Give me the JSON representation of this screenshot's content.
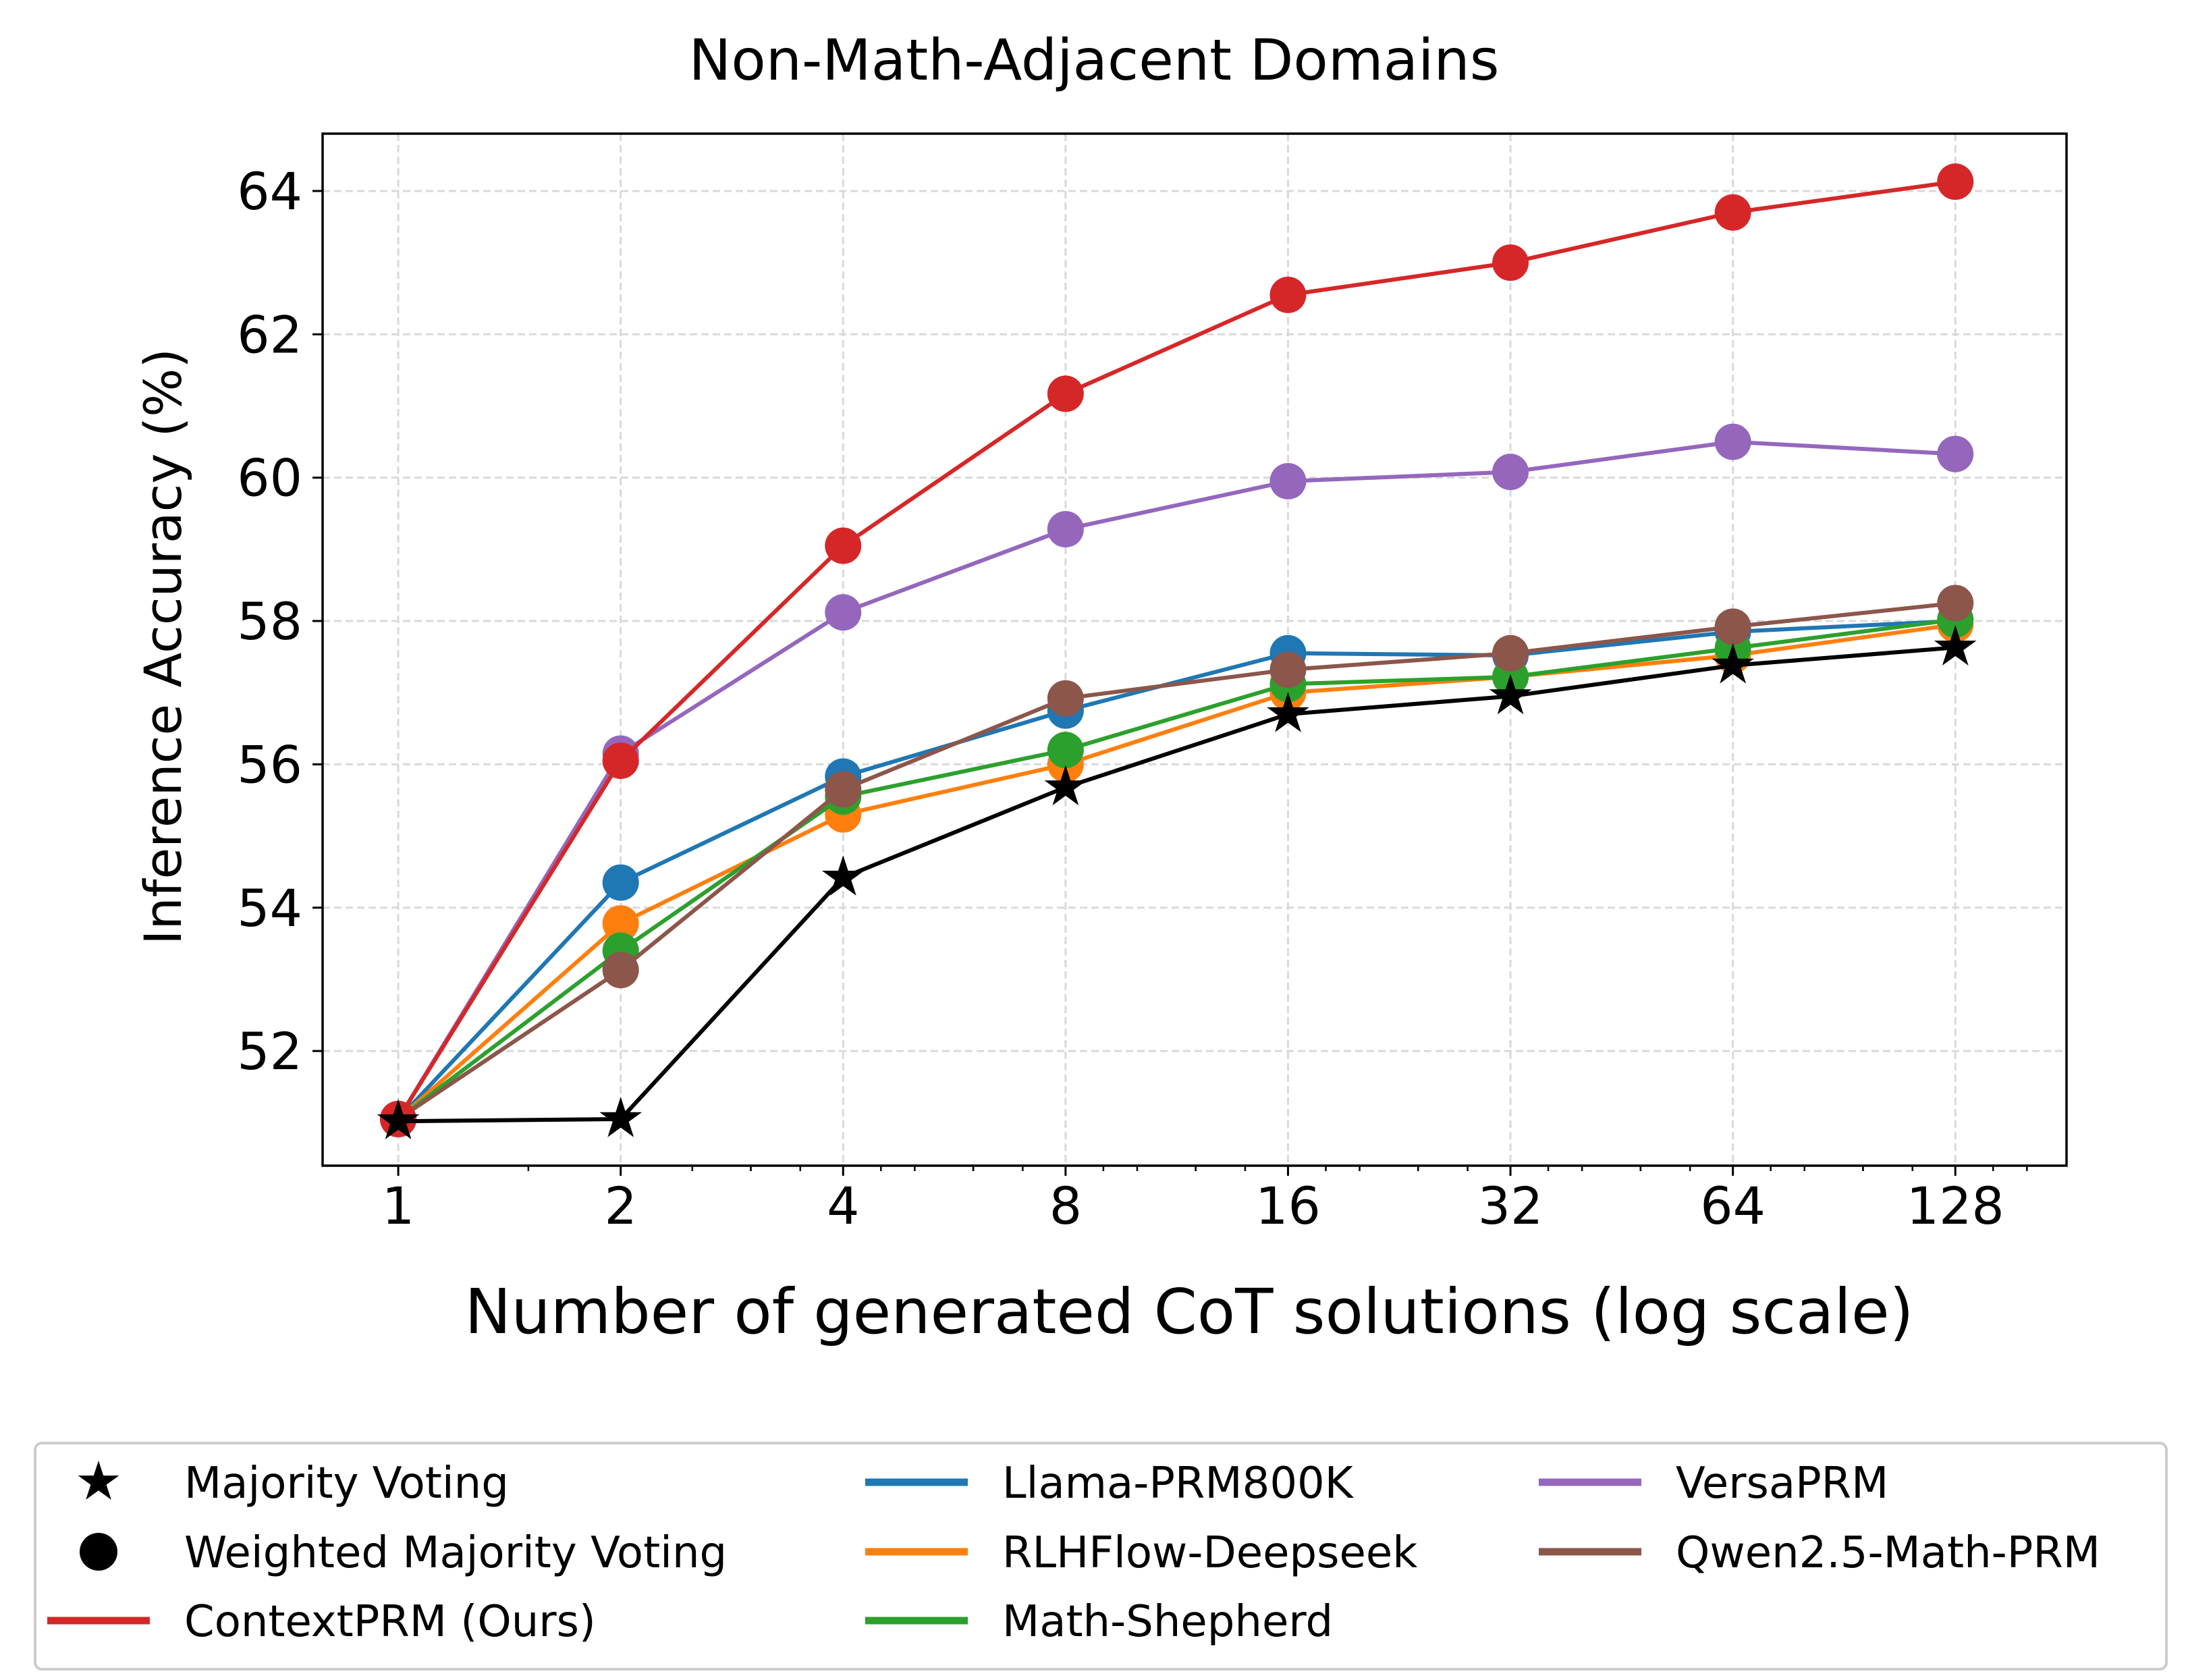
{
  "chart_data": {
    "type": "line",
    "title": "Non-Math-Adjacent Domains",
    "xlabel": "Number of generated CoT solutions (log scale)",
    "ylabel": "Inference Accuracy (%)",
    "x_scale": "log2",
    "x": [
      1,
      2,
      4,
      8,
      16,
      32,
      64,
      128
    ],
    "x_tick_labels": [
      "1",
      "2",
      "4",
      "8",
      "16",
      "32",
      "64",
      "128"
    ],
    "xlim": [
      0.79,
      181
    ],
    "ylim": [
      50.4,
      64.8
    ],
    "y_ticks": [
      52,
      54,
      56,
      58,
      60,
      62,
      64
    ],
    "y_tick_labels": [
      "52",
      "54",
      "56",
      "58",
      "60",
      "62",
      "64"
    ],
    "grid": true,
    "series": [
      {
        "name": "Llama-PRM800K",
        "color": "#1f77b4",
        "marker": "circle",
        "values": [
          51.05,
          54.35,
          55.83,
          56.75,
          57.55,
          57.52,
          57.85,
          58.0
        ]
      },
      {
        "name": "RLHFlow-Deepseek",
        "color": "#ff7f0e",
        "marker": "circle",
        "values": [
          51.05,
          53.78,
          55.3,
          56.0,
          57.0,
          57.22,
          57.52,
          57.95
        ]
      },
      {
        "name": "Math-Shepherd",
        "color": "#2ca02c",
        "marker": "circle",
        "values": [
          51.05,
          53.4,
          55.55,
          56.2,
          57.12,
          57.22,
          57.62,
          58.02
        ]
      },
      {
        "name": "Qwen2.5-Math-PRM",
        "color": "#8c564b",
        "marker": "circle",
        "values": [
          51.05,
          53.13,
          55.65,
          56.92,
          57.32,
          57.55,
          57.92,
          58.25
        ]
      },
      {
        "name": "VersaPRM",
        "color": "#9467bd",
        "marker": "circle",
        "values": [
          51.05,
          56.15,
          58.12,
          59.28,
          59.95,
          60.08,
          60.5,
          60.33
        ]
      },
      {
        "name": "ContextPRM (Ours)",
        "color": "#d62728",
        "marker": "circle",
        "values": [
          51.05,
          56.05,
          59.05,
          61.17,
          62.55,
          63.0,
          63.7,
          64.13
        ]
      },
      {
        "name": "Majority Voting",
        "color": "#000000",
        "marker": "star",
        "values": [
          51.02,
          51.05,
          54.42,
          55.68,
          56.7,
          56.95,
          57.38,
          57.63
        ]
      }
    ],
    "legend": {
      "placement": "bottom-outside",
      "columns": [
        [
          {
            "label": "Majority Voting",
            "kind": "star",
            "color": "#000000"
          },
          {
            "label": "Weighted Majority Voting",
            "kind": "circle",
            "color": "#000000"
          },
          {
            "label": "ContextPRM (Ours)",
            "kind": "line",
            "color": "#d62728"
          }
        ],
        [
          {
            "label": "Llama-PRM800K",
            "kind": "line",
            "color": "#1f77b4"
          },
          {
            "label": "RLHFlow-Deepseek",
            "kind": "line",
            "color": "#ff7f0e"
          },
          {
            "label": "Math-Shepherd",
            "kind": "line",
            "color": "#2ca02c"
          }
        ],
        [
          {
            "label": "VersaPRM",
            "kind": "line",
            "color": "#9467bd"
          },
          {
            "label": "Qwen2.5-Math-PRM",
            "kind": "line",
            "color": "#8c564b"
          }
        ]
      ]
    }
  }
}
